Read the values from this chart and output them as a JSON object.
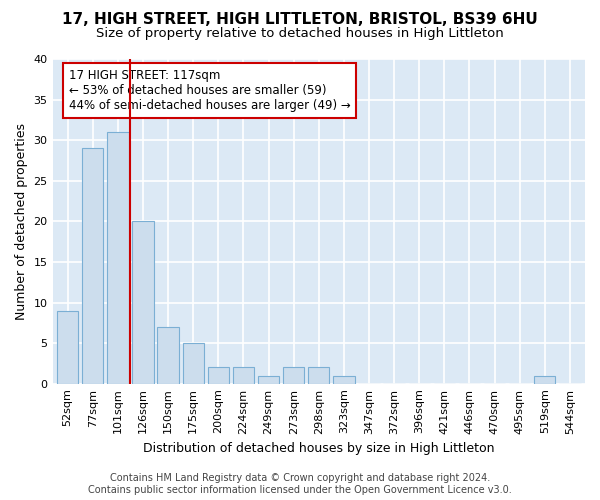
{
  "title1": "17, HIGH STREET, HIGH LITTLETON, BRISTOL, BS39 6HU",
  "title2": "Size of property relative to detached houses in High Littleton",
  "xlabel": "Distribution of detached houses by size in High Littleton",
  "ylabel": "Number of detached properties",
  "categories": [
    "52sqm",
    "77sqm",
    "101sqm",
    "126sqm",
    "150sqm",
    "175sqm",
    "200sqm",
    "224sqm",
    "249sqm",
    "273sqm",
    "298sqm",
    "323sqm",
    "347sqm",
    "372sqm",
    "396sqm",
    "421sqm",
    "446sqm",
    "470sqm",
    "495sqm",
    "519sqm",
    "544sqm"
  ],
  "values": [
    9,
    29,
    31,
    20,
    7,
    5,
    2,
    2,
    1,
    2,
    2,
    1,
    0,
    0,
    0,
    0,
    0,
    0,
    0,
    1,
    0
  ],
  "bar_color": "#ccdded",
  "bar_edge_color": "#7bafd4",
  "annotation_line1": "17 HIGH STREET: 117sqm",
  "annotation_line2": "← 53% of detached houses are smaller (59)",
  "annotation_line3": "44% of semi-detached houses are larger (49) →",
  "annotation_color": "#cc0000",
  "red_line_x": 2.5,
  "ylim": [
    0,
    40
  ],
  "yticks": [
    0,
    5,
    10,
    15,
    20,
    25,
    30,
    35,
    40
  ],
  "fig_bg_color": "#ffffff",
  "plot_bg_color": "#dce9f5",
  "grid_color": "#ffffff",
  "title1_fontsize": 11,
  "title2_fontsize": 9.5,
  "tick_fontsize": 8,
  "ylabel_fontsize": 9,
  "xlabel_fontsize": 9,
  "annotation_fontsize": 8.5,
  "footer_fontsize": 7,
  "footer1": "Contains HM Land Registry data © Crown copyright and database right 2024.",
  "footer2": "Contains public sector information licensed under the Open Government Licence v3.0."
}
